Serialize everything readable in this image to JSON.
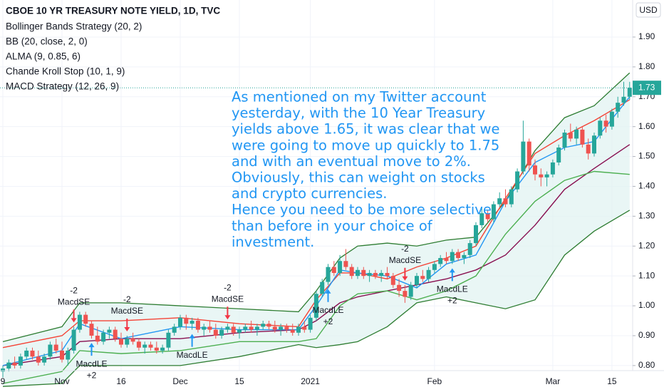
{
  "chart_data": {
    "type": "candlestick",
    "title": "CBOE 10 YR TREASURY NOTE YIELD, 1D, TVC",
    "indicators": [
      "Bollinger Bands Strategy (20, 2)",
      "BB (20, close, 2, 0)",
      "ALMA (9, 0.85, 6)",
      "Chande Kroll Stop (10, 1, 9)",
      "MACD Strategy (12, 26, 9)"
    ],
    "currency": "USD",
    "annotation": [
      "As mentioned on my Twitter account",
      "yesterday, with the 10 Year Treasury",
      "yields above 1.65, it was clear that we",
      "were going to move up quickly to 1.75",
      "and with an eventual move to 2%.",
      "Obviously, this can weight on stocks",
      "and crypto currencies.",
      "Hence you need to be more selective",
      "than before in your choice of",
      "investment."
    ],
    "categories": [
      "9",
      null,
      null,
      null,
      null,
      null,
      null,
      null,
      null,
      null,
      "Nov",
      null,
      null,
      null,
      null,
      null,
      null,
      null,
      null,
      null,
      "16",
      null,
      null,
      null,
      null,
      null,
      null,
      null,
      null,
      null,
      "Dec",
      null,
      null,
      null,
      null,
      null,
      null,
      null,
      null,
      null,
      "15",
      null,
      null,
      null,
      null,
      null,
      null,
      null,
      null,
      null,
      null,
      null,
      "2021",
      null,
      null,
      null,
      null,
      null,
      null,
      null,
      null,
      null,
      null,
      null,
      null,
      null,
      null,
      null,
      null,
      null,
      null,
      null,
      null,
      "Feb",
      null,
      null,
      null,
      null,
      null,
      null,
      null,
      null,
      null,
      null,
      null,
      null,
      null,
      null,
      null,
      null,
      null,
      null,
      null,
      "Mar",
      null,
      null,
      null,
      null,
      null,
      null,
      null,
      null,
      null,
      "15",
      null,
      null,
      null,
      null,
      null
    ],
    "up_color": "#26a69a",
    "down_color": "#ef5350",
    "candles": [
      [
        0.78,
        0.8,
        0.76,
        0.79
      ],
      [
        0.79,
        0.82,
        0.78,
        0.81
      ],
      [
        0.81,
        0.83,
        0.79,
        0.8
      ],
      [
        0.8,
        0.84,
        0.79,
        0.83
      ],
      [
        0.83,
        0.86,
        0.82,
        0.85
      ],
      [
        0.85,
        0.86,
        0.82,
        0.83
      ],
      [
        0.83,
        0.85,
        0.8,
        0.81
      ],
      [
        0.81,
        0.84,
        0.8,
        0.83
      ],
      [
        0.83,
        0.88,
        0.82,
        0.87
      ],
      [
        0.87,
        0.89,
        0.84,
        0.85
      ],
      [
        0.85,
        0.88,
        0.81,
        0.82
      ],
      [
        0.82,
        0.86,
        0.8,
        0.85
      ],
      [
        0.85,
        0.93,
        0.84,
        0.92
      ],
      [
        0.92,
        0.98,
        0.91,
        0.97
      ],
      [
        0.97,
        0.98,
        0.93,
        0.94
      ],
      [
        0.94,
        0.95,
        0.89,
        0.9
      ],
      [
        0.9,
        0.93,
        0.87,
        0.88
      ],
      [
        0.88,
        0.92,
        0.87,
        0.91
      ],
      [
        0.91,
        0.93,
        0.89,
        0.92
      ],
      [
        0.92,
        0.93,
        0.88,
        0.89
      ],
      [
        0.89,
        0.91,
        0.86,
        0.87
      ],
      [
        0.87,
        0.9,
        0.86,
        0.89
      ],
      [
        0.89,
        0.91,
        0.87,
        0.88
      ],
      [
        0.88,
        0.89,
        0.85,
        0.86
      ],
      [
        0.86,
        0.88,
        0.84,
        0.87
      ],
      [
        0.87,
        0.88,
        0.85,
        0.86
      ],
      [
        0.86,
        0.88,
        0.84,
        0.85
      ],
      [
        0.85,
        0.87,
        0.84,
        0.86
      ],
      [
        0.86,
        0.92,
        0.85,
        0.91
      ],
      [
        0.91,
        0.94,
        0.9,
        0.93
      ],
      [
        0.93,
        0.97,
        0.92,
        0.96
      ],
      [
        0.96,
        0.97,
        0.92,
        0.94
      ],
      [
        0.94,
        0.96,
        0.92,
        0.95
      ],
      [
        0.95,
        0.96,
        0.91,
        0.92
      ],
      [
        0.92,
        0.94,
        0.9,
        0.93
      ],
      [
        0.93,
        0.95,
        0.91,
        0.92
      ],
      [
        0.92,
        0.94,
        0.89,
        0.9
      ],
      [
        0.9,
        0.93,
        0.89,
        0.92
      ],
      [
        0.92,
        0.94,
        0.91,
        0.93
      ],
      [
        0.93,
        0.94,
        0.9,
        0.91
      ],
      [
        0.91,
        0.93,
        0.89,
        0.92
      ],
      [
        0.92,
        0.94,
        0.91,
        0.93
      ],
      [
        0.93,
        0.95,
        0.91,
        0.92
      ],
      [
        0.92,
        0.94,
        0.9,
        0.93
      ],
      [
        0.93,
        0.95,
        0.92,
        0.94
      ],
      [
        0.94,
        0.95,
        0.92,
        0.93
      ],
      [
        0.93,
        0.95,
        0.91,
        0.92
      ],
      [
        0.92,
        0.94,
        0.9,
        0.93
      ],
      [
        0.93,
        0.94,
        0.91,
        0.92
      ],
      [
        0.92,
        0.94,
        0.9,
        0.91
      ],
      [
        0.91,
        0.94,
        0.9,
        0.93
      ],
      [
        0.93,
        0.95,
        0.91,
        0.92
      ],
      [
        0.92,
        0.97,
        0.91,
        0.96
      ],
      [
        0.96,
        1.05,
        0.95,
        1.04
      ],
      [
        1.04,
        1.09,
        1.03,
        1.08
      ],
      [
        1.08,
        1.14,
        1.07,
        1.13
      ],
      [
        1.13,
        1.15,
        1.1,
        1.11
      ],
      [
        1.11,
        1.17,
        1.1,
        1.15
      ],
      [
        1.15,
        1.19,
        1.12,
        1.13
      ],
      [
        1.13,
        1.14,
        1.09,
        1.1
      ],
      [
        1.1,
        1.13,
        1.09,
        1.12
      ],
      [
        1.12,
        1.13,
        1.09,
        1.1
      ],
      [
        1.1,
        1.12,
        1.08,
        1.11
      ],
      [
        1.11,
        1.12,
        1.09,
        1.1
      ],
      [
        1.1,
        1.12,
        1.08,
        1.11
      ],
      [
        1.11,
        1.13,
        1.09,
        1.1
      ],
      [
        1.1,
        1.11,
        1.06,
        1.07
      ],
      [
        1.07,
        1.09,
        1.03,
        1.05
      ],
      [
        1.05,
        1.07,
        1.01,
        1.03
      ],
      [
        1.03,
        1.08,
        1.02,
        1.07
      ],
      [
        1.07,
        1.11,
        1.06,
        1.1
      ],
      [
        1.1,
        1.12,
        1.08,
        1.09
      ],
      [
        1.09,
        1.13,
        1.08,
        1.12
      ],
      [
        1.12,
        1.15,
        1.11,
        1.14
      ],
      [
        1.14,
        1.17,
        1.13,
        1.16
      ],
      [
        1.16,
        1.18,
        1.14,
        1.15
      ],
      [
        1.15,
        1.19,
        1.14,
        1.18
      ],
      [
        1.18,
        1.19,
        1.15,
        1.16
      ],
      [
        1.16,
        1.18,
        1.14,
        1.17
      ],
      [
        1.17,
        1.22,
        1.16,
        1.21
      ],
      [
        1.21,
        1.28,
        1.2,
        1.27
      ],
      [
        1.27,
        1.33,
        1.26,
        1.31
      ],
      [
        1.31,
        1.32,
        1.28,
        1.29
      ],
      [
        1.29,
        1.35,
        1.28,
        1.34
      ],
      [
        1.34,
        1.38,
        1.33,
        1.36
      ],
      [
        1.36,
        1.39,
        1.33,
        1.34
      ],
      [
        1.34,
        1.4,
        1.33,
        1.39
      ],
      [
        1.39,
        1.46,
        1.38,
        1.45
      ],
      [
        1.45,
        1.62,
        1.44,
        1.55
      ],
      [
        1.55,
        1.56,
        1.45,
        1.47
      ],
      [
        1.47,
        1.49,
        1.42,
        1.44
      ],
      [
        1.44,
        1.46,
        1.4,
        1.43
      ],
      [
        1.43,
        1.45,
        1.4,
        1.44
      ],
      [
        1.44,
        1.49,
        1.43,
        1.48
      ],
      [
        1.48,
        1.54,
        1.47,
        1.53
      ],
      [
        1.53,
        1.59,
        1.52,
        1.58
      ],
      [
        1.58,
        1.61,
        1.55,
        1.56
      ],
      [
        1.56,
        1.6,
        1.54,
        1.59
      ],
      [
        1.59,
        1.6,
        1.53,
        1.54
      ],
      [
        1.54,
        1.56,
        1.49,
        1.51
      ],
      [
        1.51,
        1.58,
        1.5,
        1.57
      ],
      [
        1.57,
        1.63,
        1.56,
        1.62
      ],
      [
        1.62,
        1.64,
        1.58,
        1.6
      ],
      [
        1.6,
        1.66,
        1.59,
        1.65
      ],
      [
        1.65,
        1.7,
        1.63,
        1.68
      ],
      [
        1.68,
        1.75,
        1.67,
        1.7
      ],
      [
        1.7,
        1.75,
        1.69,
        1.73
      ]
    ],
    "band": {
      "color": "#e0f2f1",
      "x": [
        0,
        10,
        13,
        20,
        30,
        40,
        50,
        53,
        57,
        60,
        65,
        70,
        75,
        80,
        85,
        90,
        95,
        100,
        106
      ],
      "upper": [
        0.88,
        0.93,
        1.01,
        1.01,
        1.0,
        0.99,
        0.98,
        1.05,
        1.16,
        1.2,
        1.21,
        1.2,
        1.22,
        1.23,
        1.35,
        1.52,
        1.63,
        1.67,
        1.78
      ],
      "lower": [
        0.73,
        0.74,
        0.8,
        0.8,
        0.8,
        0.83,
        0.87,
        0.86,
        0.87,
        0.88,
        0.93,
        1.01,
        1.03,
        1.01,
        0.99,
        1.02,
        1.17,
        1.25,
        1.32
      ]
    },
    "lines": [
      {
        "color": "#880e4f",
        "x": [
          0,
          10,
          13,
          20,
          30,
          40,
          50,
          53,
          57,
          60,
          65,
          70,
          75,
          80,
          85,
          90,
          95,
          100,
          106
        ],
        "values": [
          0.8,
          0.83,
          0.88,
          0.89,
          0.89,
          0.91,
          0.92,
          0.95,
          1.01,
          1.03,
          1.05,
          1.07,
          1.09,
          1.12,
          1.17,
          1.27,
          1.39,
          1.46,
          1.54
        ]
      },
      {
        "color": "#4caf50",
        "x": [
          0,
          10,
          13,
          20,
          30,
          40,
          50,
          53,
          57,
          60,
          65,
          70,
          75,
          80,
          85,
          90,
          95,
          100,
          106
        ],
        "values": [
          0.74,
          0.78,
          0.85,
          0.84,
          0.85,
          0.88,
          0.88,
          0.89,
          1.0,
          1.04,
          1.05,
          1.02,
          1.05,
          1.1,
          1.24,
          1.35,
          1.42,
          1.45,
          1.44
        ]
      },
      {
        "color": "#f44336",
        "x": [
          0,
          10,
          13,
          20,
          30,
          40,
          50,
          53,
          57,
          60,
          65,
          70,
          75,
          80,
          85,
          90,
          95,
          100,
          106
        ],
        "values": [
          0.86,
          0.9,
          0.95,
          0.95,
          0.96,
          0.94,
          0.93,
          1.02,
          1.11,
          1.11,
          1.09,
          1.13,
          1.16,
          1.2,
          1.36,
          1.51,
          1.57,
          1.62,
          1.69
        ]
      },
      {
        "color": "#2196f3",
        "x": [
          0,
          10,
          13,
          20,
          30,
          40,
          50,
          53,
          57,
          60,
          65,
          70,
          75,
          80,
          85,
          90,
          95,
          100,
          106
        ],
        "values": [
          0.8,
          0.85,
          0.94,
          0.89,
          0.93,
          0.92,
          0.92,
          1.0,
          1.12,
          1.11,
          1.1,
          1.06,
          1.14,
          1.17,
          1.35,
          1.48,
          1.53,
          1.55,
          1.7
        ]
      }
    ],
    "signals": [
      {
        "at": 12,
        "label": "MacdSE",
        "qty": "-2"
      },
      {
        "at": 15,
        "label": "MacdLE",
        "qty": "+2"
      },
      {
        "at": 21,
        "label": "MacdSE",
        "qty": "-2"
      },
      {
        "at": 32,
        "label": "MacdLE"
      },
      {
        "at": 38,
        "label": "MacdSE",
        "qty": "-2"
      },
      {
        "at": 55,
        "label": "MacdLE",
        "qty": "+2"
      },
      {
        "at": 68,
        "label": "MacdSE",
        "qty": "-2"
      },
      {
        "at": 76,
        "label": "MacdLE",
        "qty": "+2"
      }
    ],
    "ylim": [
      0.783,
      2.024
    ],
    "yticks": [
      {
        "value": 0.8,
        "label": "0.80"
      },
      {
        "value": 0.9,
        "label": "0.90"
      },
      {
        "value": 1.0,
        "label": "1.00"
      },
      {
        "value": 1.1,
        "label": "1.10"
      },
      {
        "value": 1.2,
        "label": "1.20"
      },
      {
        "value": 1.3,
        "label": "1.30"
      },
      {
        "value": 1.4,
        "label": "1.40"
      },
      {
        "value": 1.5,
        "label": "1.50"
      },
      {
        "value": 1.6,
        "label": "1.60"
      },
      {
        "value": 1.7,
        "label": "1.70"
      },
      {
        "value": 1.8,
        "label": "1.80"
      },
      {
        "value": 1.9,
        "label": "1.90"
      }
    ],
    "grid": true
  }
}
